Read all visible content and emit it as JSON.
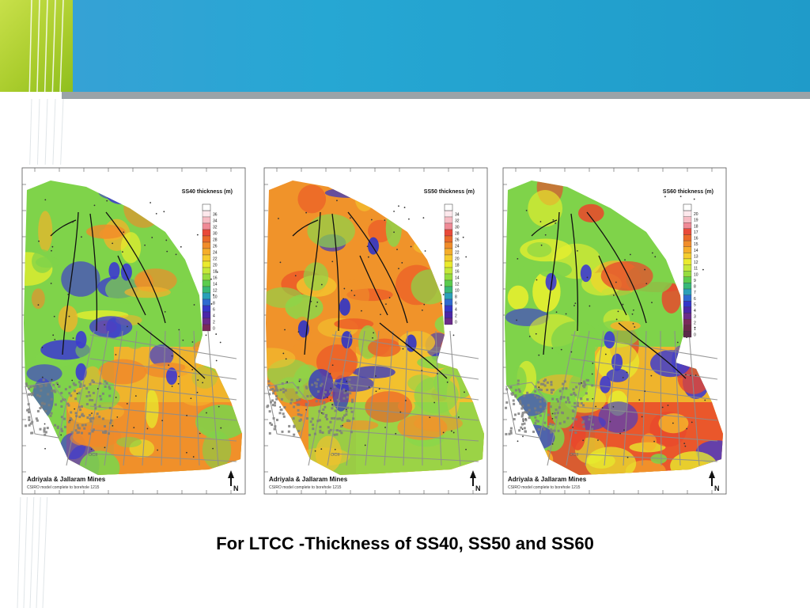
{
  "slide": {
    "caption": "For LTCC -Thickness of SS40, SS50 and SS60",
    "colors": {
      "header_blue": "#26a7d3",
      "header_green": "#a9cc2c",
      "header_grey": "#9aa3a8"
    }
  },
  "maps": [
    {
      "id": "ss40",
      "title": "SS40 thickness (m)",
      "legend": [
        "36",
        "34",
        "32",
        "30",
        "28",
        "26",
        "24",
        "22",
        "20",
        "18",
        "16",
        "14",
        "12",
        "10",
        "8",
        "6",
        "4",
        "2",
        "0"
      ],
      "mine_label": "Adriyala & Jallaram Mines",
      "model_note": "CSIRO model complete to borehole 1215",
      "north_label": "N",
      "area_label": "OCII",
      "dominant_palette": [
        "#7fd34a",
        "#e7ef2e",
        "#f5b22a",
        "#f08a2a",
        "#3c3ad0"
      ]
    },
    {
      "id": "ss50",
      "title": "SS50 thickness (m)",
      "legend": [
        "34",
        "32",
        "30",
        "28",
        "26",
        "24",
        "22",
        "20",
        "18",
        "16",
        "14",
        "12",
        "10",
        "8",
        "6",
        "4",
        "2",
        "0"
      ],
      "mine_label": "Adriyala & Jallaram Mines",
      "model_note": "CSIRO model complete to borehole 1215",
      "north_label": "N",
      "area_label": "OCII",
      "dominant_palette": [
        "#f0932a",
        "#ec5a28",
        "#f2c12e",
        "#8bd64a",
        "#2f34c8"
      ]
    },
    {
      "id": "ss60",
      "title": "SS60 thickness (m)",
      "legend": [
        "20",
        "19",
        "18",
        "17",
        "16",
        "15",
        "14",
        "13",
        "12",
        "11",
        "10",
        "9",
        "8",
        "7",
        "6",
        "5",
        "4",
        "3",
        "2",
        "1",
        "0"
      ],
      "mine_label": "Adriyala & Jallaram Mines",
      "model_note": "CSIRO model complete to borehole 1215",
      "north_label": "N",
      "area_label": "OCII",
      "dominant_palette": [
        "#7fd34a",
        "#e7ef2e",
        "#f5b22a",
        "#e9472c",
        "#3c3ad0"
      ]
    }
  ],
  "legend_colors": [
    "#fde8ec",
    "#f7bcc4",
    "#f08a96",
    "#e94a3a",
    "#ea6a2a",
    "#f08c2a",
    "#f5ad2a",
    "#f5cc2e",
    "#eaea2e",
    "#c6e83a",
    "#96dc3e",
    "#5ccc4e",
    "#38b878",
    "#2aa0b8",
    "#2e6ad0",
    "#3436c8",
    "#4a26a8",
    "#6a2a8a",
    "#7a2a5a",
    "#6a2a4a",
    "#5a2a4a"
  ]
}
